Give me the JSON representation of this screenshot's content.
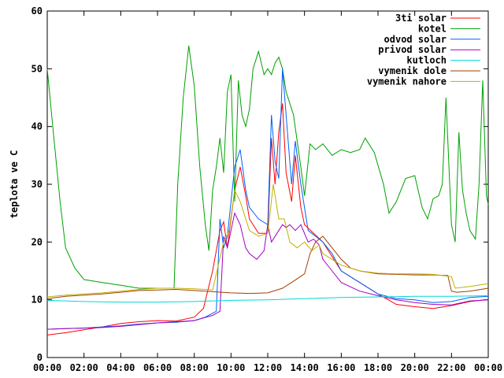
{
  "chart_data": {
    "type": "line",
    "ylabel": "teplota ve C",
    "ylim": [
      0,
      60
    ],
    "yticks": [
      0,
      10,
      20,
      30,
      40,
      50,
      60
    ],
    "xlim": [
      0,
      24
    ],
    "xticks": [
      {
        "v": 0,
        "label": "00:00"
      },
      {
        "v": 2,
        "label": "02:00"
      },
      {
        "v": 4,
        "label": "04:00"
      },
      {
        "v": 6,
        "label": "06:00"
      },
      {
        "v": 8,
        "label": "08:00"
      },
      {
        "v": 10,
        "label": "10:00"
      },
      {
        "v": 12,
        "label": "12:00"
      },
      {
        "v": 14,
        "label": "14:00"
      },
      {
        "v": 16,
        "label": "16:00"
      },
      {
        "v": 18,
        "label": "18:00"
      },
      {
        "v": 20,
        "label": "20:00"
      },
      {
        "v": 22,
        "label": "22:00"
      },
      {
        "v": 24,
        "label": "00:00"
      }
    ],
    "grid": false,
    "legend": "top-right",
    "series": [
      {
        "name": "3ti solar",
        "color": "#ff0000",
        "points": [
          [
            0,
            3.9
          ],
          [
            1,
            4.3
          ],
          [
            2,
            4.8
          ],
          [
            3,
            5.3
          ],
          [
            4,
            5.9
          ],
          [
            5,
            6.2
          ],
          [
            6,
            6.4
          ],
          [
            7,
            6.3
          ],
          [
            8,
            7.0
          ],
          [
            8.5,
            8.5
          ],
          [
            9,
            15
          ],
          [
            9.4,
            22
          ],
          [
            9.6,
            23.5
          ],
          [
            9.8,
            19
          ],
          [
            10.2,
            29
          ],
          [
            10.5,
            33
          ],
          [
            10.8,
            28
          ],
          [
            11,
            24
          ],
          [
            11.5,
            21.5
          ],
          [
            12,
            21.5
          ],
          [
            12.2,
            38
          ],
          [
            12.4,
            30
          ],
          [
            12.6,
            39
          ],
          [
            12.8,
            44
          ],
          [
            13,
            32
          ],
          [
            13.3,
            27
          ],
          [
            13.5,
            35
          ],
          [
            13.8,
            26
          ],
          [
            14,
            23
          ],
          [
            14.5,
            21.5
          ],
          [
            15,
            20
          ],
          [
            16,
            15
          ],
          [
            17,
            13
          ],
          [
            18,
            11
          ],
          [
            19,
            9.2
          ],
          [
            20,
            8.8
          ],
          [
            21,
            8.5
          ],
          [
            22,
            9
          ],
          [
            23,
            9.7
          ],
          [
            23.8,
            10
          ]
        ]
      },
      {
        "name": "kotel",
        "color": "#00a000",
        "points": [
          [
            0,
            50
          ],
          [
            0.3,
            40
          ],
          [
            0.7,
            27
          ],
          [
            1,
            19
          ],
          [
            1.5,
            15.5
          ],
          [
            2,
            13.5
          ],
          [
            3,
            13
          ],
          [
            4,
            12.5
          ],
          [
            5,
            12
          ],
          [
            6,
            12
          ],
          [
            6.9,
            12
          ],
          [
            7.1,
            30
          ],
          [
            7.4,
            45
          ],
          [
            7.7,
            54
          ],
          [
            8,
            47
          ],
          [
            8.3,
            33
          ],
          [
            8.6,
            23
          ],
          [
            8.8,
            18.5
          ],
          [
            9,
            29
          ],
          [
            9.2,
            33
          ],
          [
            9.4,
            38
          ],
          [
            9.6,
            32
          ],
          [
            9.8,
            46
          ],
          [
            10,
            49
          ],
          [
            10.2,
            27
          ],
          [
            10.4,
            48
          ],
          [
            10.6,
            42
          ],
          [
            10.8,
            40
          ],
          [
            11,
            43
          ],
          [
            11.2,
            50
          ],
          [
            11.5,
            53
          ],
          [
            11.8,
            49
          ],
          [
            12,
            50
          ],
          [
            12.2,
            49
          ],
          [
            12.4,
            51
          ],
          [
            12.6,
            52
          ],
          [
            12.8,
            50
          ],
          [
            13,
            46
          ],
          [
            13.4,
            42
          ],
          [
            13.8,
            33
          ],
          [
            14,
            28
          ],
          [
            14.3,
            37
          ],
          [
            14.6,
            36
          ],
          [
            15,
            37
          ],
          [
            15.5,
            35
          ],
          [
            16,
            36
          ],
          [
            16.5,
            35.5
          ],
          [
            17,
            36
          ],
          [
            17.3,
            38
          ],
          [
            17.8,
            35.5
          ],
          [
            18.3,
            30
          ],
          [
            18.6,
            25
          ],
          [
            19,
            27
          ],
          [
            19.5,
            31
          ],
          [
            20,
            31.5
          ],
          [
            20.4,
            26
          ],
          [
            20.7,
            24
          ],
          [
            21,
            27.5
          ],
          [
            21.3,
            28
          ],
          [
            21.5,
            30
          ],
          [
            21.7,
            45
          ],
          [
            22,
            23
          ],
          [
            22.2,
            20
          ],
          [
            22.4,
            39
          ],
          [
            22.6,
            29
          ],
          [
            22.8,
            25
          ],
          [
            23,
            22
          ],
          [
            23.3,
            20.5
          ],
          [
            23.5,
            30
          ],
          [
            23.7,
            48
          ],
          [
            23.9,
            28
          ],
          [
            24,
            26.5
          ]
        ]
      },
      {
        "name": "odvod solar",
        "color": "#0060ff",
        "points": [
          [
            0,
            4.9
          ],
          [
            1,
            5
          ],
          [
            2,
            5.1
          ],
          [
            3,
            5.3
          ],
          [
            4,
            5.5
          ],
          [
            5,
            5.8
          ],
          [
            6,
            6.0
          ],
          [
            7,
            6.1
          ],
          [
            8,
            6.4
          ],
          [
            8.6,
            7
          ],
          [
            9.2,
            8
          ],
          [
            9.4,
            24
          ],
          [
            9.6,
            19
          ],
          [
            9.8,
            21
          ],
          [
            10.2,
            33
          ],
          [
            10.5,
            36
          ],
          [
            10.8,
            29
          ],
          [
            11,
            26
          ],
          [
            11.5,
            24
          ],
          [
            12,
            23
          ],
          [
            12.2,
            42
          ],
          [
            12.4,
            34
          ],
          [
            12.6,
            31
          ],
          [
            12.8,
            50
          ],
          [
            13,
            42
          ],
          [
            13.3,
            30
          ],
          [
            13.5,
            37.5
          ],
          [
            13.8,
            30
          ],
          [
            14.2,
            22
          ],
          [
            14.6,
            21
          ],
          [
            15,
            20
          ],
          [
            15.5,
            18
          ],
          [
            16,
            15
          ],
          [
            17,
            13
          ],
          [
            18,
            11
          ],
          [
            19,
            10.2
          ],
          [
            20,
            10
          ],
          [
            21,
            9.5
          ],
          [
            22,
            9.7
          ],
          [
            23,
            10.4
          ],
          [
            24,
            10.6
          ]
        ]
      },
      {
        "name": "privod solar",
        "color": "#a000c0",
        "points": [
          [
            0,
            4.9
          ],
          [
            1,
            5
          ],
          [
            2,
            5.1
          ],
          [
            3,
            5.2
          ],
          [
            4,
            5.4
          ],
          [
            5,
            5.7
          ],
          [
            6,
            6.0
          ],
          [
            7,
            6.2
          ],
          [
            8,
            6.4
          ],
          [
            9,
            7.3
          ],
          [
            9.4,
            8
          ],
          [
            9.6,
            21
          ],
          [
            9.8,
            19
          ],
          [
            10.2,
            25
          ],
          [
            10.5,
            23
          ],
          [
            10.8,
            19
          ],
          [
            11,
            18
          ],
          [
            11.4,
            17
          ],
          [
            11.8,
            18.5
          ],
          [
            12,
            23
          ],
          [
            12.2,
            20
          ],
          [
            12.6,
            22
          ],
          [
            12.8,
            23
          ],
          [
            13,
            22.5
          ],
          [
            13.2,
            23
          ],
          [
            13.5,
            22
          ],
          [
            13.8,
            23
          ],
          [
            14.2,
            20
          ],
          [
            14.5,
            20.5
          ],
          [
            14.8,
            19.5
          ],
          [
            15,
            17
          ],
          [
            15.5,
            15
          ],
          [
            16,
            13
          ],
          [
            17,
            11.5
          ],
          [
            18,
            10.7
          ],
          [
            19,
            10
          ],
          [
            20,
            9.5
          ],
          [
            21,
            9.2
          ],
          [
            22,
            9.1
          ],
          [
            23,
            9.8
          ],
          [
            24,
            10
          ]
        ]
      },
      {
        "name": "kutloch",
        "color": "#00d8d8",
        "points": [
          [
            0,
            9.9
          ],
          [
            2,
            9.7
          ],
          [
            4,
            9.6
          ],
          [
            6,
            9.6
          ],
          [
            8,
            9.7
          ],
          [
            10,
            9.9
          ],
          [
            12,
            10.0
          ],
          [
            14,
            10.2
          ],
          [
            16,
            10.4
          ],
          [
            18,
            10.5
          ],
          [
            20,
            10.6
          ],
          [
            22,
            10.6
          ],
          [
            24,
            10.7
          ]
        ]
      },
      {
        "name": "vymenik dole",
        "color": "#a04000",
        "points": [
          [
            0,
            10.2
          ],
          [
            1,
            10.6
          ],
          [
            2,
            10.8
          ],
          [
            3,
            11.0
          ],
          [
            4,
            11.3
          ],
          [
            5,
            11.6
          ],
          [
            6,
            11.7
          ],
          [
            7,
            11.8
          ],
          [
            8,
            11.6
          ],
          [
            9,
            11.4
          ],
          [
            10,
            11.2
          ],
          [
            11,
            11.1
          ],
          [
            12,
            11.2
          ],
          [
            12.8,
            12
          ],
          [
            13.3,
            13
          ],
          [
            14,
            14.5
          ],
          [
            14.3,
            18
          ],
          [
            14.6,
            20
          ],
          [
            15,
            21
          ],
          [
            15.5,
            19
          ],
          [
            16,
            17
          ],
          [
            16.5,
            15.5
          ],
          [
            17,
            15
          ],
          [
            18,
            14.5
          ],
          [
            19,
            14.4
          ],
          [
            20,
            14.3
          ],
          [
            21,
            14.3
          ],
          [
            21.8,
            14.2
          ],
          [
            22,
            11.5
          ],
          [
            22.3,
            11.3
          ],
          [
            23,
            11.5
          ],
          [
            24,
            12
          ]
        ]
      },
      {
        "name": "vymenik nahore",
        "color": "#c0b000",
        "points": [
          [
            0,
            10.5
          ],
          [
            1,
            10.8
          ],
          [
            2,
            11
          ],
          [
            3,
            11.2
          ],
          [
            4,
            11.5
          ],
          [
            5,
            11.8
          ],
          [
            6,
            12
          ],
          [
            7,
            12
          ],
          [
            8,
            11.9
          ],
          [
            9,
            11.7
          ],
          [
            9.6,
            20
          ],
          [
            9.9,
            22
          ],
          [
            10.2,
            29
          ],
          [
            10.5,
            27
          ],
          [
            10.8,
            24
          ],
          [
            11,
            22
          ],
          [
            11.5,
            21
          ],
          [
            12,
            21.5
          ],
          [
            12.3,
            30
          ],
          [
            12.6,
            24
          ],
          [
            12.9,
            24
          ],
          [
            13.2,
            20
          ],
          [
            13.6,
            19
          ],
          [
            14,
            20
          ],
          [
            14.4,
            18.5
          ],
          [
            14.8,
            19.5
          ],
          [
            15,
            18
          ],
          [
            15.5,
            17
          ],
          [
            16,
            16
          ],
          [
            17,
            15
          ],
          [
            18,
            14.6
          ],
          [
            19,
            14.5
          ],
          [
            20,
            14.5
          ],
          [
            21,
            14.4
          ],
          [
            22,
            14
          ],
          [
            22.2,
            12
          ],
          [
            23,
            12.3
          ],
          [
            24,
            12.8
          ]
        ]
      }
    ]
  }
}
